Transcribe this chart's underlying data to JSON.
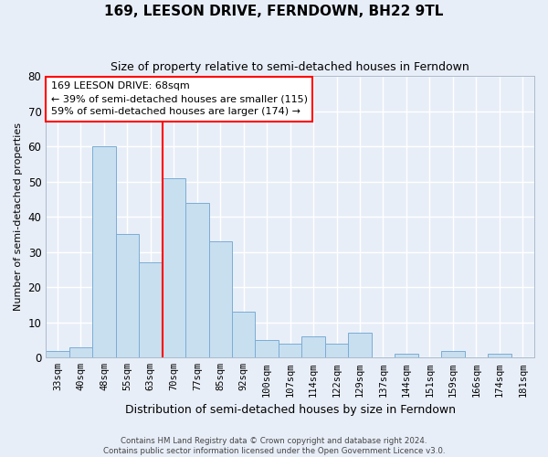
{
  "title": "169, LEESON DRIVE, FERNDOWN, BH22 9TL",
  "subtitle": "Size of property relative to semi-detached houses in Ferndown",
  "xlabel": "Distribution of semi-detached houses by size in Ferndown",
  "ylabel": "Number of semi-detached properties",
  "categories": [
    "33sqm",
    "40sqm",
    "48sqm",
    "55sqm",
    "63sqm",
    "70sqm",
    "77sqm",
    "85sqm",
    "92sqm",
    "100sqm",
    "107sqm",
    "114sqm",
    "122sqm",
    "129sqm",
    "137sqm",
    "144sqm",
    "151sqm",
    "159sqm",
    "166sqm",
    "174sqm",
    "181sqm"
  ],
  "values": [
    2,
    3,
    60,
    35,
    27,
    51,
    44,
    33,
    13,
    5,
    4,
    6,
    4,
    7,
    0,
    1,
    0,
    2,
    0,
    1,
    0
  ],
  "bar_color": "#c8dff0",
  "bar_edge_color": "#7badd4",
  "property_line_label": "169 LEESON DRIVE: 68sqm",
  "annotation_smaller": "← 39% of semi-detached houses are smaller (115)",
  "annotation_larger": "59% of semi-detached houses are larger (174) →",
  "ylim": [
    0,
    80
  ],
  "yticks": [
    0,
    10,
    20,
    30,
    40,
    50,
    60,
    70,
    80
  ],
  "footer1": "Contains HM Land Registry data © Crown copyright and database right 2024.",
  "footer2": "Contains public sector information licensed under the Open Government Licence v3.0.",
  "background_color": "#e8eef8",
  "grid_color": "#ffffff"
}
